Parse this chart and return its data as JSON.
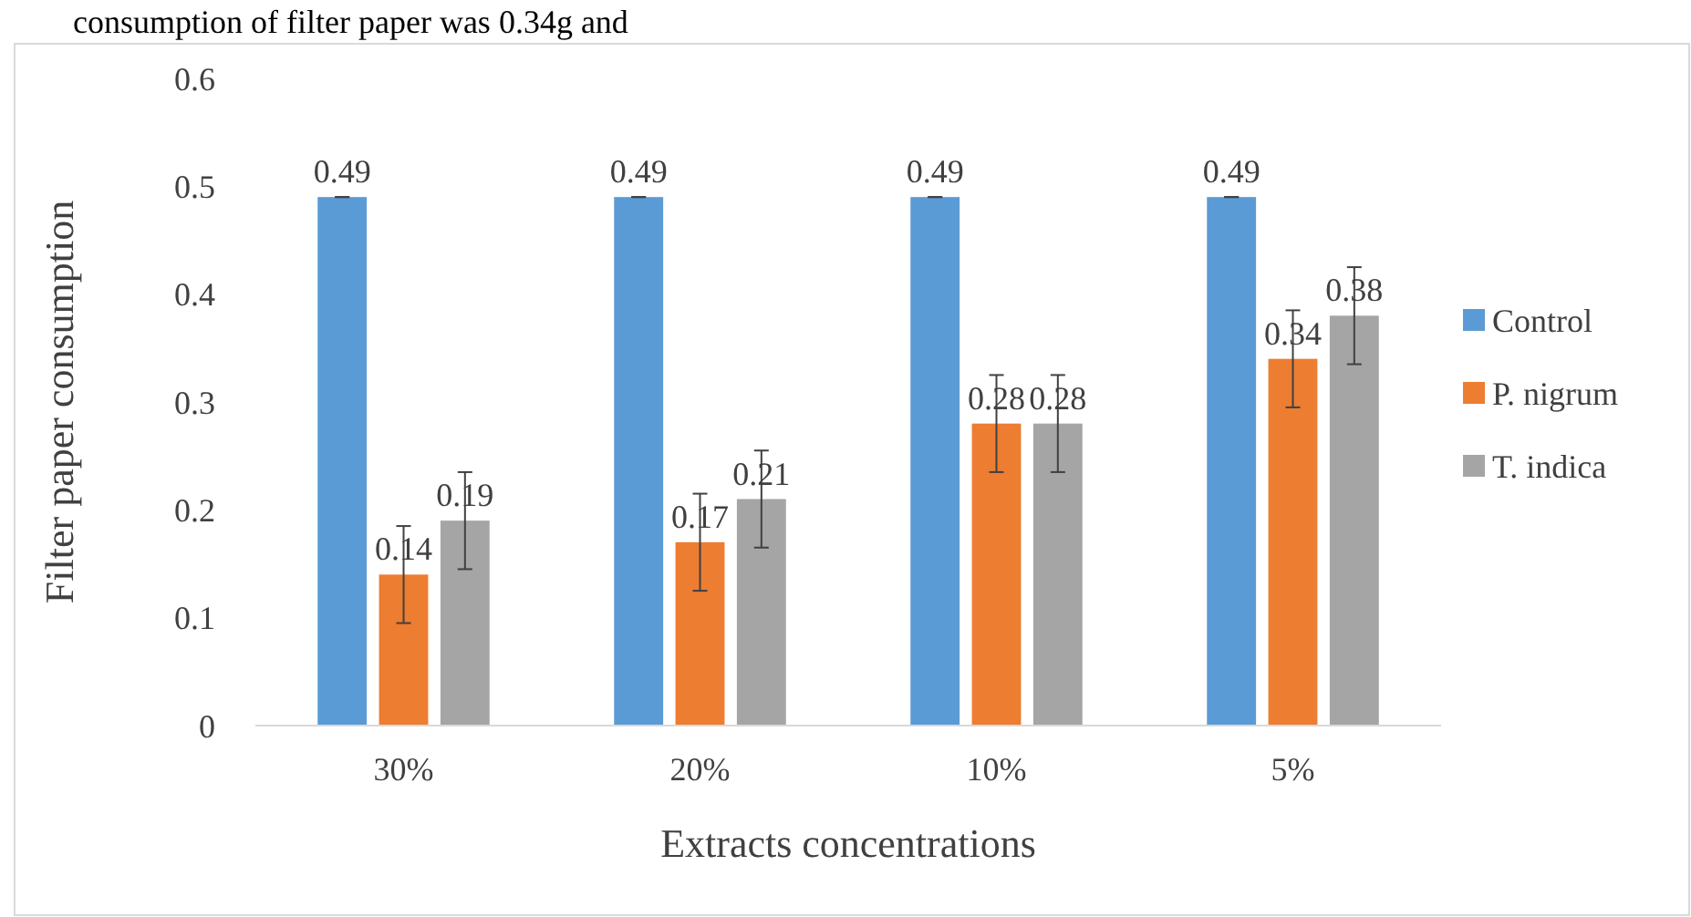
{
  "chart_data": {
    "type": "bar",
    "xlabel": "Extracts concentrations",
    "ylabel": "Filter paper consumption",
    "annotations": [
      "consumption of filter paper was 0.34g and"
    ],
    "categories": [
      "30%",
      "20%",
      "10%",
      "5%"
    ],
    "series": [
      {
        "name": "Control",
        "color": "#5b9bd5",
        "values": [
          0.49,
          0.49,
          0.49,
          0.49
        ],
        "errors": [
          0,
          0,
          0,
          0
        ]
      },
      {
        "name": "P. nigrum",
        "color": "#ed7d31",
        "values": [
          0.14,
          0.17,
          0.28,
          0.34
        ],
        "errors": [
          0.045,
          0.045,
          0.045,
          0.045
        ]
      },
      {
        "name": "T. indica",
        "color": "#a5a5a5",
        "values": [
          0.19,
          0.21,
          0.28,
          0.38
        ],
        "errors": [
          0.045,
          0.045,
          0.045,
          0.045
        ]
      }
    ],
    "ylim": [
      0,
      0.6
    ],
    "yticks": [
      0,
      0.1,
      0.2,
      0.3,
      0.4,
      0.5,
      0.6
    ],
    "grid": false,
    "legend": "right",
    "data_labels": true
  }
}
